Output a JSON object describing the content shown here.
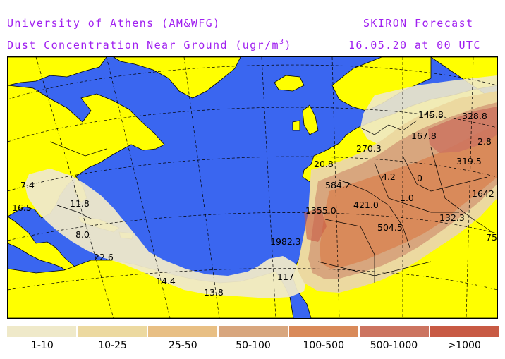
{
  "header": {
    "institution": "University of Athens (AM&WFG)",
    "product": "SKIRON Forecast",
    "variable_prefix": "Dust Concentration Near Ground (ugr/m",
    "variable_exp": "3",
    "variable_suffix": ")",
    "datetime": "16.05.20 at 00 UTC"
  },
  "colors": {
    "ocean": "#3a66f0",
    "land": "#ffff00",
    "border_lines": "#000000",
    "title_text": "#a020f0"
  },
  "map_values": [
    {
      "label": "145.8"
    },
    {
      "label": "328.8"
    },
    {
      "label": "167.8"
    },
    {
      "label": "2.8"
    },
    {
      "label": "270.3"
    },
    {
      "label": "319.5"
    },
    {
      "label": "20.8"
    },
    {
      "label": "4.2"
    },
    {
      "label": "0"
    },
    {
      "label": "584.2"
    },
    {
      "label": "1642"
    },
    {
      "label": "1.0"
    },
    {
      "label": "421.0"
    },
    {
      "label": "1355.0"
    },
    {
      "label": "132.3"
    },
    {
      "label": "504.5"
    },
    {
      "label": "1982.3"
    },
    {
      "label": "117"
    },
    {
      "label": "14.4"
    },
    {
      "label": "13.8"
    },
    {
      "label": "22.6"
    },
    {
      "label": "8.0"
    },
    {
      "label": "11.8"
    },
    {
      "label": "16.5"
    },
    {
      "label": "7.4"
    },
    {
      "label": "75"
    }
  ],
  "legend": [
    {
      "label": "1-10",
      "color": "#efe9c9"
    },
    {
      "label": "10-25",
      "color": "#ecd9a0"
    },
    {
      "label": "25-50",
      "color": "#e8bf84"
    },
    {
      "label": "50-100",
      "color": "#d8a67e"
    },
    {
      "label": "100-500",
      "color": "#d98a5a"
    },
    {
      "label": "500-1000",
      "color": "#cc7460"
    },
    {
      "label": ">1000",
      "color": "#c85a44"
    }
  ]
}
